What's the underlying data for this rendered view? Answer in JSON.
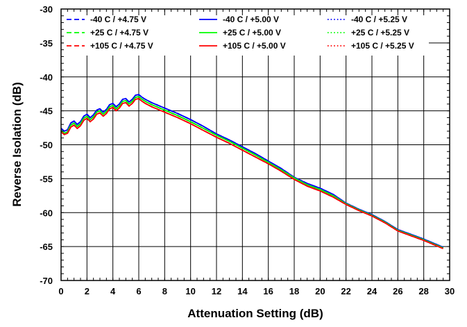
{
  "chart_data": {
    "type": "line",
    "xlabel": "Attenuation Setting (dB)",
    "ylabel": "Reverse Isolation (dB)",
    "xlim": [
      0,
      30
    ],
    "ylim": [
      -70,
      -30
    ],
    "xticks": [
      0,
      2,
      4,
      6,
      8,
      10,
      12,
      14,
      16,
      18,
      20,
      22,
      24,
      26,
      28,
      30
    ],
    "yticks": [
      -70,
      -65,
      -60,
      -55,
      -50,
      -45,
      -40,
      -35,
      -30
    ],
    "grid": true,
    "legend_position": "top",
    "x": [
      0,
      0.25,
      0.5,
      0.75,
      1.0,
      1.25,
      1.5,
      1.75,
      2.0,
      2.25,
      2.5,
      2.75,
      3.0,
      3.25,
      3.5,
      3.75,
      4.0,
      4.25,
      4.5,
      4.75,
      5.0,
      5.25,
      5.5,
      5.75,
      6.0,
      6.25,
      6.5,
      7,
      8,
      9,
      10,
      11,
      12,
      13,
      14,
      15,
      16,
      17,
      18,
      19,
      20,
      21,
      22,
      23,
      24,
      25,
      26,
      27,
      28,
      29,
      29.5
    ],
    "series": [
      {
        "name": "-40 C  / +4.75 V",
        "color": "#0000ff",
        "dash": "dashed",
        "values": [
          -47.6,
          -48.0,
          -47.8,
          -46.8,
          -46.5,
          -47.0,
          -46.6,
          -45.8,
          -45.5,
          -46.0,
          -45.6,
          -44.9,
          -44.7,
          -45.2,
          -44.8,
          -44.1,
          -43.9,
          -44.4,
          -44.0,
          -43.3,
          -43.2,
          -43.7,
          -43.3,
          -42.7,
          -42.6,
          -43.0,
          -43.3,
          -43.8,
          -44.6,
          -45.4,
          -46.3,
          -47.3,
          -48.4,
          -49.3,
          -50.3,
          -51.3,
          -52.4,
          -53.5,
          -54.8,
          -55.7,
          -56.4,
          -57.3,
          -58.6,
          -59.5,
          -60.3,
          -61.3,
          -62.5,
          -63.2,
          -63.9,
          -64.7,
          -65.1
        ]
      },
      {
        "name": "-40 C  / +5.00 V",
        "color": "#0000ff",
        "dash": "solid",
        "values": [
          -47.6,
          -48.0,
          -47.8,
          -46.8,
          -46.5,
          -47.0,
          -46.6,
          -45.8,
          -45.5,
          -46.0,
          -45.6,
          -44.9,
          -44.7,
          -45.2,
          -44.8,
          -44.1,
          -43.9,
          -44.4,
          -44.0,
          -43.3,
          -43.2,
          -43.7,
          -43.3,
          -42.7,
          -42.6,
          -43.0,
          -43.3,
          -43.8,
          -44.6,
          -45.4,
          -46.3,
          -47.3,
          -48.4,
          -49.3,
          -50.3,
          -51.3,
          -52.4,
          -53.5,
          -54.8,
          -55.7,
          -56.4,
          -57.3,
          -58.6,
          -59.5,
          -60.3,
          -61.3,
          -62.5,
          -63.2,
          -63.9,
          -64.7,
          -65.1
        ]
      },
      {
        "name": "-40 C  / +5.25 V",
        "color": "#0000ff",
        "dash": "dotted",
        "values": [
          -47.6,
          -48.0,
          -47.8,
          -46.8,
          -46.5,
          -47.0,
          -46.6,
          -45.8,
          -45.5,
          -46.0,
          -45.6,
          -44.9,
          -44.7,
          -45.2,
          -44.8,
          -44.1,
          -43.9,
          -44.4,
          -44.0,
          -43.3,
          -43.2,
          -43.7,
          -43.3,
          -42.7,
          -42.6,
          -43.0,
          -43.3,
          -43.8,
          -44.6,
          -45.4,
          -46.3,
          -47.3,
          -48.4,
          -49.3,
          -50.3,
          -51.3,
          -52.4,
          -53.5,
          -54.8,
          -55.7,
          -56.4,
          -57.3,
          -58.6,
          -59.5,
          -60.3,
          -61.3,
          -62.5,
          -63.2,
          -63.9,
          -64.7,
          -65.1
        ]
      },
      {
        "name": "+25 C  / +4.75 V",
        "color": "#00ff00",
        "dash": "dashed",
        "values": [
          -47.9,
          -48.3,
          -48.1,
          -47.1,
          -46.8,
          -47.3,
          -46.9,
          -46.1,
          -45.8,
          -46.3,
          -45.9,
          -45.2,
          -45.0,
          -45.5,
          -45.1,
          -44.4,
          -44.2,
          -44.7,
          -44.3,
          -43.6,
          -43.5,
          -44.0,
          -43.6,
          -43.0,
          -42.9,
          -43.3,
          -43.6,
          -44.1,
          -44.9,
          -45.7,
          -46.6,
          -47.6,
          -48.6,
          -49.5,
          -50.5,
          -51.5,
          -52.6,
          -53.7,
          -54.9,
          -55.9,
          -56.6,
          -57.5,
          -58.7,
          -59.6,
          -60.4,
          -61.4,
          -62.6,
          -63.3,
          -64.0,
          -64.8,
          -65.2
        ]
      },
      {
        "name": "+25 C  / +5.00 V",
        "color": "#00ff00",
        "dash": "solid",
        "values": [
          -47.9,
          -48.3,
          -48.1,
          -47.1,
          -46.8,
          -47.3,
          -46.9,
          -46.1,
          -45.8,
          -46.3,
          -45.9,
          -45.2,
          -45.0,
          -45.5,
          -45.1,
          -44.4,
          -44.2,
          -44.7,
          -44.3,
          -43.6,
          -43.5,
          -44.0,
          -43.6,
          -43.0,
          -42.9,
          -43.3,
          -43.6,
          -44.1,
          -44.9,
          -45.7,
          -46.6,
          -47.6,
          -48.6,
          -49.5,
          -50.5,
          -51.5,
          -52.6,
          -53.7,
          -54.9,
          -55.9,
          -56.6,
          -57.5,
          -58.7,
          -59.6,
          -60.4,
          -61.4,
          -62.6,
          -63.3,
          -64.0,
          -64.8,
          -65.2
        ]
      },
      {
        "name": "+25 C  / +5.25 V",
        "color": "#00ff00",
        "dash": "dotted",
        "values": [
          -47.9,
          -48.3,
          -48.1,
          -47.1,
          -46.8,
          -47.3,
          -46.9,
          -46.1,
          -45.8,
          -46.3,
          -45.9,
          -45.2,
          -45.0,
          -45.5,
          -45.1,
          -44.4,
          -44.2,
          -44.7,
          -44.3,
          -43.6,
          -43.5,
          -44.0,
          -43.6,
          -43.0,
          -42.9,
          -43.3,
          -43.6,
          -44.1,
          -44.9,
          -45.7,
          -46.6,
          -47.6,
          -48.6,
          -49.5,
          -50.5,
          -51.5,
          -52.6,
          -53.7,
          -54.9,
          -55.9,
          -56.6,
          -57.5,
          -58.7,
          -59.6,
          -60.4,
          -61.4,
          -62.6,
          -63.3,
          -64.0,
          -64.8,
          -65.2
        ]
      },
      {
        "name": "+105 C  / +4.75 V",
        "color": "#ff0000",
        "dash": "dashed",
        "values": [
          -48.1,
          -48.5,
          -48.3,
          -47.4,
          -47.1,
          -47.6,
          -47.2,
          -46.4,
          -46.1,
          -46.6,
          -46.2,
          -45.5,
          -45.3,
          -45.8,
          -45.4,
          -44.7,
          -44.5,
          -45.0,
          -44.6,
          -43.9,
          -43.8,
          -44.3,
          -43.9,
          -43.3,
          -43.2,
          -43.6,
          -43.9,
          -44.4,
          -45.2,
          -46.0,
          -46.9,
          -47.9,
          -48.9,
          -49.8,
          -50.8,
          -51.8,
          -52.8,
          -53.9,
          -55.1,
          -56.1,
          -56.8,
          -57.7,
          -58.8,
          -59.7,
          -60.5,
          -61.5,
          -62.7,
          -63.4,
          -64.1,
          -64.9,
          -65.3
        ]
      },
      {
        "name": "+105 C  / +5.00 V",
        "color": "#ff0000",
        "dash": "solid",
        "values": [
          -48.1,
          -48.5,
          -48.3,
          -47.4,
          -47.1,
          -47.6,
          -47.2,
          -46.4,
          -46.1,
          -46.6,
          -46.2,
          -45.5,
          -45.3,
          -45.8,
          -45.4,
          -44.7,
          -44.5,
          -45.0,
          -44.6,
          -43.9,
          -43.8,
          -44.3,
          -43.9,
          -43.3,
          -43.2,
          -43.6,
          -43.9,
          -44.4,
          -45.2,
          -46.0,
          -46.9,
          -47.9,
          -48.9,
          -49.8,
          -50.8,
          -51.8,
          -52.8,
          -53.9,
          -55.1,
          -56.1,
          -56.8,
          -57.7,
          -58.8,
          -59.7,
          -60.5,
          -61.5,
          -62.7,
          -63.4,
          -64.1,
          -64.9,
          -65.3
        ]
      },
      {
        "name": "+105 C  / +5.25 V",
        "color": "#ff0000",
        "dash": "dotted",
        "values": [
          -48.1,
          -48.5,
          -48.3,
          -47.4,
          -47.1,
          -47.6,
          -47.2,
          -46.4,
          -46.1,
          -46.6,
          -46.2,
          -45.5,
          -45.3,
          -45.8,
          -45.4,
          -44.7,
          -44.5,
          -45.0,
          -44.6,
          -43.9,
          -43.8,
          -44.3,
          -43.9,
          -43.3,
          -43.2,
          -43.6,
          -43.9,
          -44.4,
          -45.2,
          -46.0,
          -46.9,
          -47.9,
          -48.9,
          -49.8,
          -50.8,
          -51.8,
          -52.8,
          -53.9,
          -55.1,
          -56.1,
          -56.8,
          -57.7,
          -58.8,
          -59.7,
          -60.5,
          -61.5,
          -62.7,
          -63.4,
          -64.1,
          -64.9,
          -65.3
        ]
      }
    ]
  }
}
